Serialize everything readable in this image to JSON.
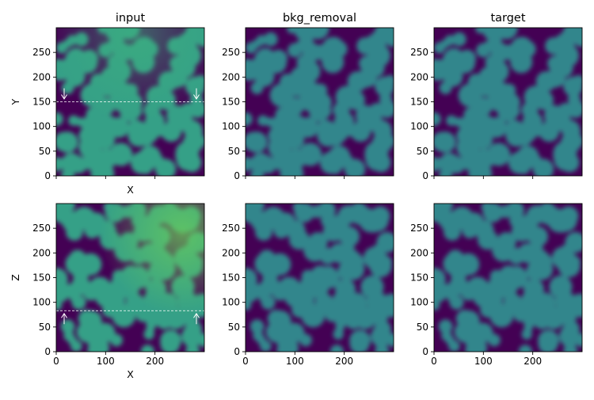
{
  "colors": {
    "background": "#440154",
    "blob": "#31868c",
    "blob_light": "#35a087",
    "blob_bright": "#52be6c",
    "axis": "#000000",
    "guide": "#ffffff"
  },
  "chart_data": [
    {
      "type": "heatmap",
      "title": "input",
      "xlabel": "X",
      "ylabel": "Y",
      "xlim": [
        0,
        300
      ],
      "ylim": [
        0,
        300
      ],
      "xticks": [
        "0",
        "100",
        "200"
      ],
      "yticks": [
        "0",
        "50",
        "100",
        "150",
        "200",
        "250"
      ],
      "show_xticklabels": false,
      "guide_line_y": 150,
      "guide_arrow": "down",
      "colormap": "viridis"
    },
    {
      "type": "heatmap",
      "title": "bkg_removal",
      "xlabel": "",
      "ylabel": "",
      "xlim": [
        0,
        300
      ],
      "ylim": [
        0,
        300
      ],
      "xticks": [
        "0",
        "100",
        "200"
      ],
      "yticks": [
        "0",
        "50",
        "100",
        "150",
        "200",
        "250"
      ],
      "show_xticklabels": false,
      "colormap": "viridis"
    },
    {
      "type": "heatmap",
      "title": "target",
      "xlabel": "",
      "ylabel": "",
      "xlim": [
        0,
        300
      ],
      "ylim": [
        0,
        300
      ],
      "xticks": [
        "0",
        "100",
        "200"
      ],
      "yticks": [
        "0",
        "50",
        "100",
        "150",
        "200",
        "250"
      ],
      "show_xticklabels": false,
      "colormap": "viridis"
    },
    {
      "type": "heatmap",
      "title": "",
      "xlabel": "X",
      "ylabel": "Z",
      "xlim": [
        0,
        300
      ],
      "ylim": [
        0,
        300
      ],
      "xticks": [
        "0",
        "100",
        "200"
      ],
      "yticks": [
        "0",
        "50",
        "100",
        "150",
        "200",
        "250"
      ],
      "show_xticklabels": true,
      "guide_line_y": 83,
      "guide_arrow": "up",
      "colormap": "viridis"
    },
    {
      "type": "heatmap",
      "title": "",
      "xlabel": "",
      "ylabel": "",
      "xlim": [
        0,
        300
      ],
      "ylim": [
        0,
        300
      ],
      "xticks": [
        "0",
        "100",
        "200"
      ],
      "yticks": [
        "0",
        "50",
        "100",
        "150",
        "200",
        "250"
      ],
      "show_xticklabels": true,
      "colormap": "viridis"
    },
    {
      "type": "heatmap",
      "title": "",
      "xlabel": "",
      "ylabel": "",
      "xlim": [
        0,
        300
      ],
      "ylim": [
        0,
        300
      ],
      "xticks": [
        "0",
        "100",
        "200"
      ],
      "yticks": [
        "0",
        "50",
        "100",
        "150",
        "200",
        "250"
      ],
      "show_xticklabels": true,
      "colormap": "viridis"
    }
  ]
}
